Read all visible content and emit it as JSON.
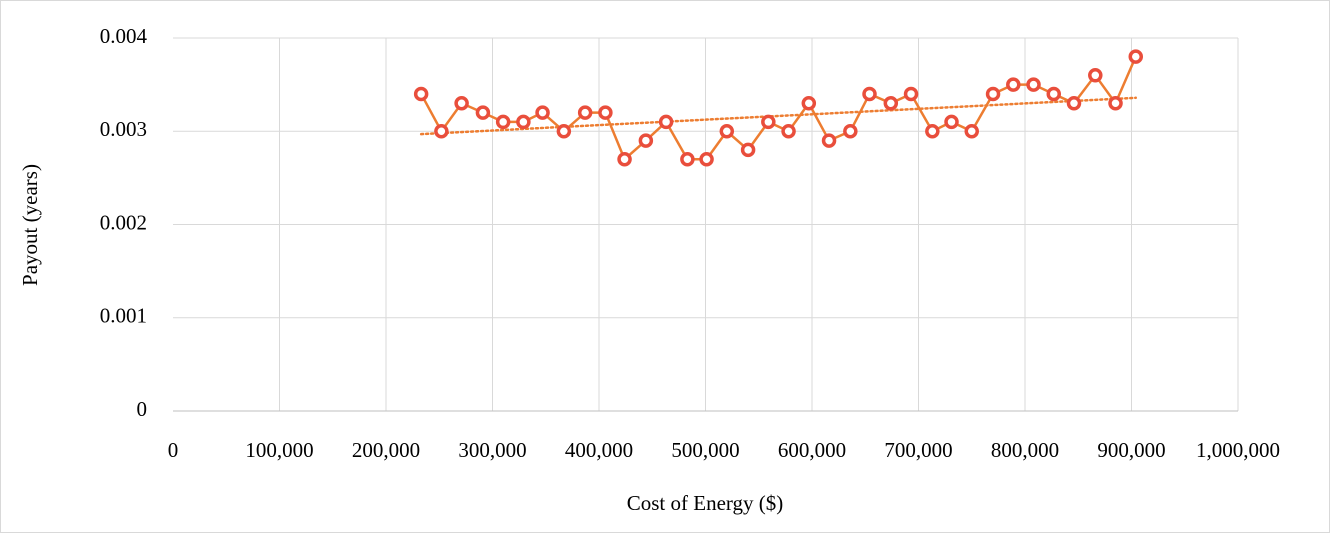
{
  "chart_data": {
    "type": "scatter-line",
    "x_label": "Cost of Energy ($)",
    "y_label": "Payout (years)",
    "series": [
      {
        "color": "#ed7d31",
        "marker_color": "#e94e3c",
        "x": [
          233000,
          252000,
          271000,
          291000,
          310000,
          329000,
          347000,
          367000,
          387000,
          406000,
          424000,
          444000,
          463000,
          483000,
          501000,
          520000,
          540000,
          559000,
          578000,
          597000,
          616000,
          636000,
          654000,
          674000,
          693000,
          713000,
          731000,
          750000,
          770000,
          789000,
          808000,
          827000,
          846000,
          866000,
          885000,
          904000
        ],
        "values": [
          0.0034,
          0.003,
          0.0033,
          0.0032,
          0.0031,
          0.0031,
          0.0032,
          0.003,
          0.0032,
          0.0032,
          0.0027,
          0.0029,
          0.0031,
          0.0027,
          0.0027,
          0.003,
          0.0028,
          0.0031,
          0.003,
          0.0033,
          0.0029,
          0.003,
          0.0034,
          0.0033,
          0.0034,
          0.003,
          0.0031,
          0.003,
          0.0034,
          0.0035,
          0.0035,
          0.0034,
          0.0033,
          0.0036,
          0.0033,
          0.0038
        ],
        "trendline": "linear"
      }
    ],
    "xlim": [
      0,
      1000000
    ],
    "xticks": [
      0,
      {
        "value": 100000,
        "label": "100,000"
      },
      {
        "value": 200000,
        "label": "200,000"
      },
      {
        "value": 300000,
        "label": "300,000"
      },
      {
        "value": 400000,
        "label": "400,000"
      },
      {
        "value": 500000,
        "label": "500,000"
      },
      {
        "value": 600000,
        "label": "600,000"
      },
      {
        "value": 700000,
        "label": "700,000"
      },
      {
        "value": 800000,
        "label": "800,000"
      },
      {
        "value": 900000,
        "label": "900,000"
      },
      {
        "value": 1000000,
        "label": "1,000,000"
      }
    ],
    "ylim": [
      0,
      0.004
    ],
    "yticks": [
      0,
      0.001,
      0.002,
      0.003,
      0.004
    ],
    "grid": true
  }
}
